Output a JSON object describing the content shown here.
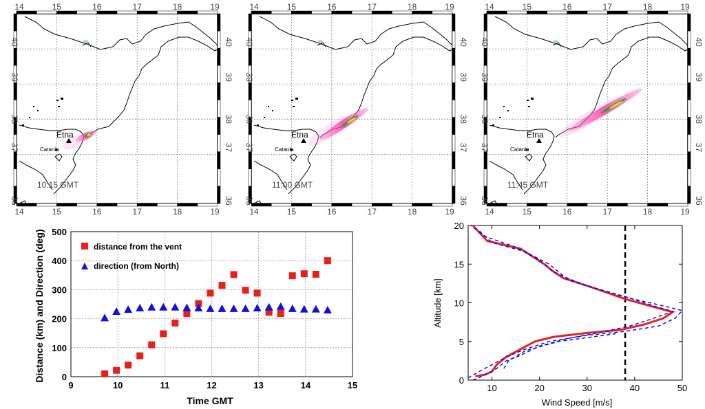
{
  "maps": {
    "x_ticks": [
      "14",
      "15",
      "16",
      "17",
      "18",
      "19"
    ],
    "y_ticks": [
      "36",
      "37",
      "38",
      "39",
      "40"
    ],
    "etna_label": "Etna",
    "catania_label": "Catania",
    "panels": [
      {
        "time_label": "10:15 GMT",
        "plume": "short"
      },
      {
        "time_label": "11:00 GMT",
        "plume": "medium"
      },
      {
        "time_label": "11:45 GMT",
        "plume": "long"
      }
    ]
  },
  "chart_data": [
    {
      "type": "scatter",
      "title": "",
      "xlabel": "Time GMT",
      "ylabel": "Distance (km) and Direction (deg)",
      "xlim": [
        9,
        15
      ],
      "ylim": [
        0,
        500
      ],
      "x_ticks": [
        9,
        10,
        11,
        12,
        13,
        14,
        15
      ],
      "y_ticks": [
        0,
        100,
        200,
        300,
        400,
        500
      ],
      "grid": true,
      "legend_position": "top-left",
      "series": [
        {
          "name": "distance from the vent",
          "marker": "square",
          "color": "#e8201c",
          "x": [
            9.72,
            9.97,
            10.22,
            10.47,
            10.72,
            10.97,
            11.22,
            11.47,
            11.72,
            11.97,
            12.22,
            12.47,
            12.72,
            12.97,
            13.22,
            13.47,
            13.72,
            13.97,
            14.22,
            14.47
          ],
          "y": [
            10,
            22,
            40,
            72,
            110,
            148,
            185,
            218,
            252,
            288,
            315,
            352,
            298,
            288,
            222,
            218,
            348,
            355,
            353,
            400
          ]
        },
        {
          "name": "direction (from North)",
          "marker": "triangle",
          "color": "#1010e0",
          "x": [
            9.72,
            9.97,
            10.22,
            10.47,
            10.72,
            10.97,
            11.22,
            11.47,
            11.72,
            11.97,
            12.22,
            12.47,
            12.72,
            12.97,
            13.22,
            13.47,
            13.72,
            13.97,
            14.22,
            14.47
          ],
          "y": [
            203,
            225,
            232,
            237,
            240,
            240,
            240,
            238,
            237,
            235,
            235,
            235,
            235,
            237,
            240,
            242,
            235,
            233,
            233,
            230
          ]
        }
      ]
    },
    {
      "type": "line",
      "title": "",
      "xlabel": "Wind Speed [m/s]",
      "ylabel": "Altitude [km]",
      "xlim": [
        5,
        50
      ],
      "ylim": [
        0,
        20
      ],
      "x_ticks": [
        10,
        20,
        30,
        40,
        50
      ],
      "y_ticks": [
        0,
        5,
        10,
        15,
        20
      ],
      "series": [
        {
          "name": "",
          "color": "#e8201c",
          "style": "solid",
          "points": [
            [
              6.5,
              0.5
            ],
            [
              8.5,
              0.7
            ],
            [
              10,
              1.1
            ],
            [
              11,
              2
            ],
            [
              13,
              3
            ],
            [
              16,
              4
            ],
            [
              19,
              5
            ],
            [
              23,
              5.6
            ],
            [
              30,
              6.1
            ],
            [
              37,
              6.5
            ],
            [
              42,
              7.2
            ],
            [
              46,
              8
            ],
            [
              48,
              8.8
            ],
            [
              45,
              9.3
            ],
            [
              38,
              10.5
            ],
            [
              31,
              12
            ],
            [
              25,
              13.2
            ],
            [
              23,
              14
            ],
            [
              21,
              15
            ],
            [
              16,
              17
            ],
            [
              9,
              18
            ],
            [
              6,
              20
            ]
          ]
        },
        {
          "name": "",
          "color": "#1010e0",
          "style": "dashed",
          "points": [
            [
              5,
              0.3
            ],
            [
              7,
              1
            ],
            [
              10,
              2
            ],
            [
              13,
              3
            ],
            [
              17,
              4
            ],
            [
              22,
              5
            ],
            [
              30,
              5.8
            ],
            [
              38,
              6.3
            ],
            [
              45,
              7
            ],
            [
              48.5,
              8
            ],
            [
              50,
              9
            ],
            [
              46,
              9.6
            ],
            [
              39,
              10.6
            ],
            [
              32,
              11.8
            ],
            [
              26,
              13
            ],
            [
              24,
              14
            ],
            [
              22,
              15
            ],
            [
              17,
              16.6
            ],
            [
              10,
              17.8
            ],
            [
              7,
              19.5
            ]
          ]
        },
        {
          "name": "",
          "color": "#1010e0",
          "style": "dashed",
          "points": [
            [
              6,
              0
            ],
            [
              9,
              0.8
            ],
            [
              11,
              1.5
            ],
            [
              12,
              2
            ],
            [
              13,
              2.5
            ],
            [
              16,
              3.2
            ],
            [
              20,
              4.4
            ],
            [
              26,
              5.4
            ],
            [
              33,
              6.2
            ],
            [
              39,
              7
            ],
            [
              44,
              8
            ],
            [
              48,
              8.9
            ],
            [
              44.5,
              9.5
            ],
            [
              38,
              10.8
            ],
            [
              30,
              12.2
            ],
            [
              25,
              13.4
            ],
            [
              22.5,
              14.2
            ],
            [
              20,
              15.5
            ],
            [
              15,
              17.2
            ],
            [
              8.5,
              18.6
            ],
            [
              5.5,
              20
            ]
          ]
        },
        {
          "name": "",
          "color": "#1010e0",
          "style": "dashed",
          "points": [
            [
              12.5,
              1.5
            ],
            [
              13.5,
              2.5
            ],
            [
              17,
              3.8
            ],
            [
              24,
              5
            ],
            [
              36,
              6
            ]
          ]
        }
      ],
      "vline": {
        "x": 38,
        "color": "#000000",
        "style": "dashed"
      }
    }
  ]
}
